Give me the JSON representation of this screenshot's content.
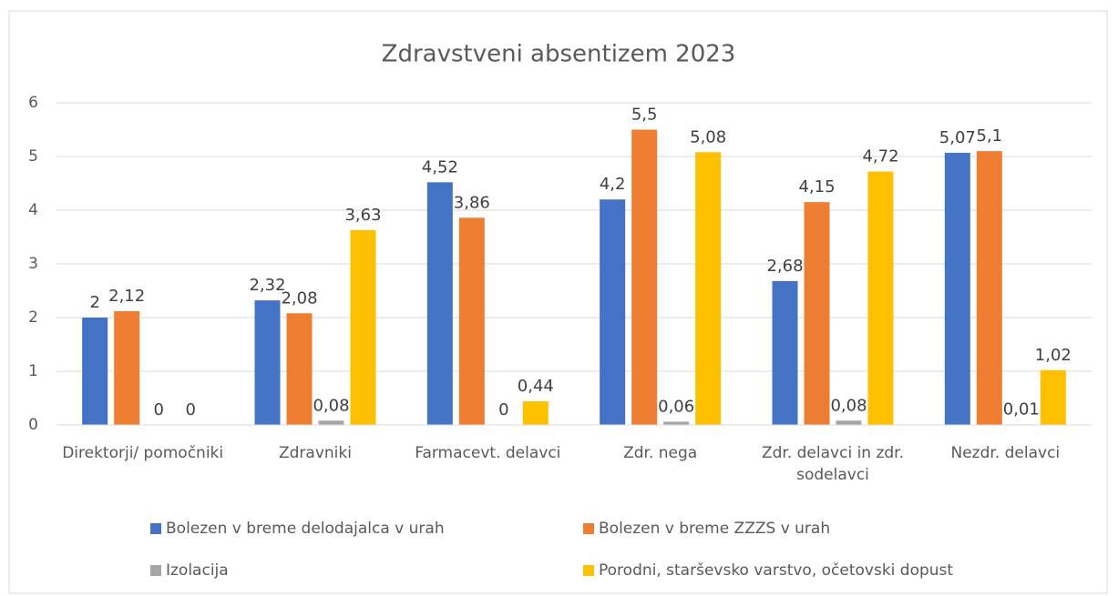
{
  "chart_data": {
    "type": "bar",
    "title": "Zdravstveni absentizem 2023",
    "categories": [
      "Direktorji/ pomočniki",
      "Zdravniki",
      "Farmacevt. delavci",
      "Zdr. nega",
      "Zdr. delavci in zdr. sodelavci",
      "Nezdr. delavci"
    ],
    "series": [
      {
        "name": "Bolezen v breme delodajalca v urah",
        "color": "#4472c4",
        "values": [
          2,
          2.32,
          4.52,
          4.2,
          2.68,
          5.07
        ],
        "value_labels": [
          "2",
          "2,32",
          "4,52",
          "4,2",
          "2,68",
          "5,07"
        ]
      },
      {
        "name": "Bolezen v breme ZZZS v urah",
        "color": "#ed7d31",
        "values": [
          2.12,
          2.08,
          3.86,
          5.5,
          4.15,
          5.1
        ],
        "value_labels": [
          "2,12",
          "2,08",
          "3,86",
          "5,5",
          "4,15",
          "5,1"
        ]
      },
      {
        "name": "Izolacija",
        "color": "#a5a5a5",
        "values": [
          0,
          0.08,
          0,
          0.06,
          0.08,
          0.01
        ],
        "value_labels": [
          "0",
          "0,08",
          "0",
          "0,06",
          "0,08",
          "0,01"
        ]
      },
      {
        "name": "Porodni, starševsko varstvo, očetovski dopust",
        "color": "#ffc000",
        "values": [
          0,
          3.63,
          0.44,
          5.08,
          4.72,
          1.02
        ],
        "value_labels": [
          "0",
          "3,63",
          "0,44",
          "5,08",
          "4,72",
          "1,02"
        ]
      }
    ],
    "ylim": [
      0,
      6
    ],
    "yticks": [
      0,
      1,
      2,
      3,
      4,
      5,
      6
    ],
    "grid": true,
    "legend": "bottom"
  }
}
